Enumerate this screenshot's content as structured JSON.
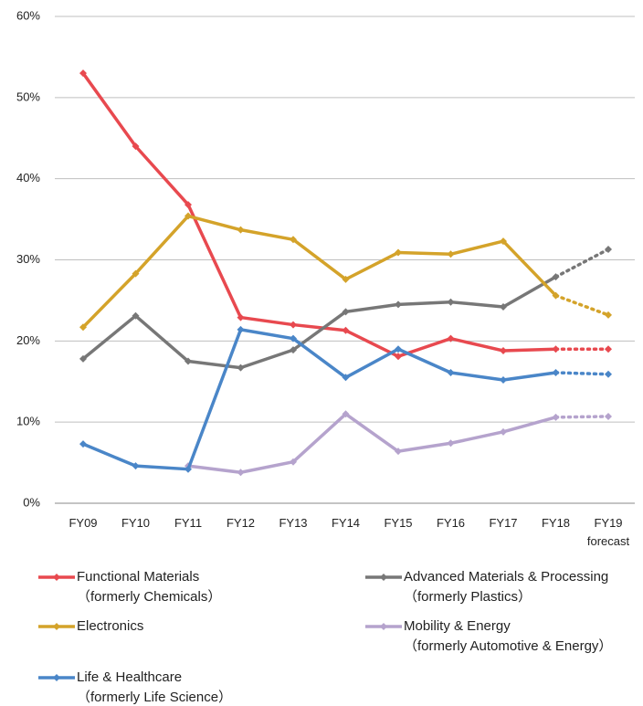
{
  "chart_data": {
    "type": "line",
    "categories": [
      "FY09",
      "FY10",
      "FY11",
      "FY12",
      "FY13",
      "FY14",
      "FY15",
      "FY16",
      "FY17",
      "FY18",
      "FY19\nforecast"
    ],
    "ylim": [
      0,
      60
    ],
    "yticks": [
      {
        "value": 0,
        "label": "0%"
      },
      {
        "value": 10,
        "label": "10%"
      },
      {
        "value": 20,
        "label": "20%"
      },
      {
        "value": 30,
        "label": "30%"
      },
      {
        "value": 40,
        "label": "40%"
      },
      {
        "value": 50,
        "label": "50%"
      },
      {
        "value": 60,
        "label": "60%"
      }
    ],
    "grid": true,
    "forecast_dotted": true,
    "series": [
      {
        "name": "Functional Materials\n（formerly Chemicals）",
        "color": "#e8494f",
        "values": [
          53.0,
          44.0,
          36.8,
          22.9,
          22.0,
          21.3,
          18.1,
          20.3,
          18.8,
          19.0,
          19.0
        ]
      },
      {
        "name": "Advanced Materials & Processing\n（formerly Plastics）",
        "color": "#777777",
        "values": [
          17.8,
          23.1,
          17.5,
          16.7,
          18.9,
          23.6,
          24.5,
          24.8,
          24.2,
          27.9,
          31.3
        ]
      },
      {
        "name": "Electronics",
        "color": "#d4a32a",
        "values": [
          21.7,
          28.3,
          35.4,
          33.7,
          32.5,
          27.6,
          30.9,
          30.7,
          32.3,
          25.6,
          23.2
        ]
      },
      {
        "name": "Mobility & Energy\n（formerly Automotive & Energy）",
        "color": "#b5a3cd",
        "values": [
          null,
          null,
          4.6,
          3.8,
          5.1,
          11.0,
          6.4,
          7.4,
          8.8,
          10.6,
          10.7
        ]
      },
      {
        "name": "Life & Healthcare\n（formerly Life Science）",
        "color": "#4a86c8",
        "values": [
          7.3,
          4.6,
          4.2,
          21.4,
          20.3,
          15.5,
          19.0,
          16.1,
          15.2,
          16.1,
          15.9
        ]
      }
    ]
  }
}
